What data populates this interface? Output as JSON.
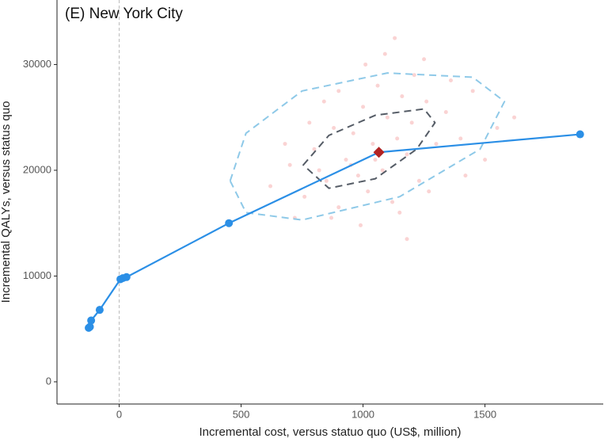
{
  "chart_data": {
    "type": "scatter",
    "title": "(E) New York City",
    "x_label": "Incremental cost, versus statuo quo (US$, million)",
    "y_label": "Incremental QALYs, versus status quo",
    "xlim": [
      -255,
      1985
    ],
    "ylim": [
      -2100,
      36100
    ],
    "xticks": [
      0,
      500,
      1000,
      1500
    ],
    "yticks": [
      0,
      10000,
      20000,
      30000
    ],
    "vlines": [
      0
    ],
    "series": [
      {
        "color": "#f08080",
        "marker": "cloud",
        "x": [
          620,
          700,
          760,
          800,
          850,
          880,
          900,
          930,
          960,
          980,
          1000,
          1020,
          1040,
          1060,
          1080,
          1100,
          1120,
          1140,
          1160,
          1180,
          1200,
          1230,
          1260,
          1300,
          1340,
          1400,
          1450,
          1500,
          1550,
          1620,
          950,
          870,
          1010,
          1090,
          1150,
          1210,
          780,
          840,
          990,
          1130,
          1270,
          1360,
          720,
          680,
          1420,
          1050,
          900,
          1250,
          1180,
          820
        ],
        "y": [
          18500,
          20500,
          17500,
          22000,
          19000,
          24000,
          16500,
          21000,
          23500,
          19500,
          26000,
          18000,
          22500,
          28000,
          20000,
          25000,
          17000,
          23000,
          27000,
          21500,
          24500,
          19000,
          26500,
          22500,
          25500,
          23000,
          27500,
          21000,
          24000,
          25000,
          20500,
          15500,
          30000,
          31000,
          16000,
          29000,
          24500,
          26500,
          14800,
          32500,
          18000,
          28500,
          15500,
          22500,
          19500,
          21000,
          27500,
          30500,
          13500,
          20000
        ]
      },
      {
        "color": "#2b8fe6",
        "marker": "line",
        "x": [
          -125,
          -120,
          -115,
          -80,
          5,
          15,
          30,
          450,
          1065,
          1890
        ],
        "y": [
          5100,
          5200,
          5800,
          6800,
          9700,
          9800,
          9900,
          15000,
          21700,
          23400
        ]
      },
      {
        "color": "#b22222",
        "marker": "diamond",
        "x": [
          1065
        ],
        "y": [
          21700
        ]
      }
    ],
    "ellipses": [
      {
        "color": "#8ec9e8",
        "x": [
          455,
          520,
          750,
          1100,
          1450,
          1580,
          1480,
          1150,
          750,
          520
        ],
        "y": [
          19000,
          23500,
          27500,
          29200,
          28800,
          26500,
          22000,
          17500,
          15300,
          16000
        ]
      },
      {
        "color": "#555c66",
        "x": [
          755,
          860,
          1050,
          1250,
          1295,
          1220,
          1050,
          860
        ],
        "y": [
          20500,
          23300,
          25200,
          25800,
          24500,
          22000,
          19200,
          18300
        ]
      }
    ]
  }
}
